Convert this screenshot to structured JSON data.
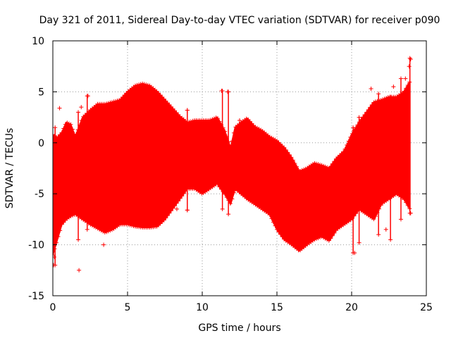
{
  "chart_data": {
    "type": "scatter",
    "title": "Day 321 of 2011, Sidereal Day-to-day VTEC variation (SDTVAR) for receiver p090",
    "xlabel": "GPS time / hours",
    "ylabel": "SDTVAR / TECUs",
    "xlim": [
      0,
      25
    ],
    "ylim": [
      -15,
      10
    ],
    "xticks": [
      0,
      5,
      10,
      15,
      20,
      25
    ],
    "yticks": [
      -15,
      -10,
      -5,
      0,
      5,
      10
    ],
    "xtick_labels": [
      "0",
      "5",
      "10",
      "15",
      "20",
      "25"
    ],
    "ytick_labels": [
      "-15",
      "-10",
      "-5",
      "0",
      "5",
      "10"
    ],
    "grid": true,
    "marker": "+",
    "color": "#ff0000",
    "envelope": {
      "x": [
        0.0,
        0.3,
        0.6,
        0.9,
        1.2,
        1.5,
        2.0,
        2.5,
        3.0,
        3.5,
        4.0,
        4.5,
        5.0,
        5.5,
        6.0,
        6.5,
        7.0,
        7.5,
        8.0,
        8.5,
        9.0,
        9.5,
        10.0,
        10.5,
        11.0,
        11.5,
        11.9,
        12.2,
        12.6,
        13.0,
        13.5,
        14.0,
        14.5,
        15.0,
        15.5,
        16.0,
        16.5,
        17.0,
        17.5,
        18.0,
        18.5,
        19.0,
        19.5,
        20.0,
        20.5,
        21.0,
        21.5,
        22.0,
        22.5,
        23.0,
        23.5,
        23.9
      ],
      "upper": [
        0.8,
        0.5,
        1.0,
        2.0,
        1.8,
        0.6,
        2.5,
        3.2,
        3.8,
        3.8,
        4.0,
        4.2,
        5.0,
        5.6,
        5.8,
        5.6,
        5.0,
        4.2,
        3.4,
        2.6,
        2.0,
        2.2,
        2.2,
        2.2,
        2.5,
        1.2,
        -0.5,
        1.5,
        2.0,
        2.4,
        1.6,
        1.2,
        0.6,
        0.2,
        -0.5,
        -1.5,
        -2.8,
        -2.5,
        -2.0,
        -2.2,
        -2.5,
        -1.5,
        -0.8,
        0.8,
        2.0,
        3.0,
        4.0,
        4.2,
        4.5,
        4.5,
        5.0,
        6.0
      ],
      "lower": [
        -11.0,
        -9.5,
        -8.0,
        -7.5,
        -7.2,
        -7.0,
        -7.5,
        -8.0,
        -8.4,
        -8.8,
        -8.5,
        -8.0,
        -8.0,
        -8.2,
        -8.3,
        -8.3,
        -8.2,
        -7.5,
        -6.5,
        -5.5,
        -4.5,
        -4.5,
        -5.0,
        -4.5,
        -4.0,
        -5.0,
        -6.0,
        -4.5,
        -5.0,
        -5.5,
        -6.0,
        -6.5,
        -7.0,
        -8.5,
        -9.5,
        -10.0,
        -10.6,
        -10.0,
        -9.5,
        -9.2,
        -9.6,
        -8.5,
        -8.0,
        -7.5,
        -6.5,
        -7.0,
        -7.5,
        -6.0,
        -5.5,
        -5.0,
        -5.5,
        -6.5
      ]
    },
    "outliers": [
      {
        "x": 0.05,
        "y": -12.0
      },
      {
        "x": 0.1,
        "y": -11.2
      },
      {
        "x": 0.45,
        "y": 3.4
      },
      {
        "x": 1.75,
        "y": -12.5
      },
      {
        "x": 1.9,
        "y": 3.5
      },
      {
        "x": 2.35,
        "y": 4.6
      },
      {
        "x": 3.4,
        "y": -10.0
      },
      {
        "x": 8.3,
        "y": -6.5
      },
      {
        "x": 9.0,
        "y": -6.6
      },
      {
        "x": 9.0,
        "y": 3.2
      },
      {
        "x": 11.3,
        "y": 5.1
      },
      {
        "x": 11.7,
        "y": 5.0
      },
      {
        "x": 12.5,
        "y": 2.2
      },
      {
        "x": 18.1,
        "y": -7.9
      },
      {
        "x": 20.2,
        "y": -10.8
      },
      {
        "x": 21.3,
        "y": 5.3
      },
      {
        "x": 22.3,
        "y": -8.5
      },
      {
        "x": 22.8,
        "y": 5.5
      },
      {
        "x": 23.6,
        "y": 6.3
      },
      {
        "x": 23.85,
        "y": 7.5
      },
      {
        "x": 23.95,
        "y": 8.2
      },
      {
        "x": 23.95,
        "y": -6.9
      }
    ],
    "spikes": [
      {
        "x": 0.15,
        "low": -12.0,
        "high": 1.5
      },
      {
        "x": 1.7,
        "low": -9.5,
        "high": 3.0
      },
      {
        "x": 2.3,
        "low": -8.5,
        "high": 4.6
      },
      {
        "x": 9.0,
        "low": -6.6,
        "high": 3.2
      },
      {
        "x": 11.35,
        "low": -6.5,
        "high": 5.1
      },
      {
        "x": 11.75,
        "low": -7.0,
        "high": 5.0
      },
      {
        "x": 20.1,
        "low": -10.8,
        "high": 1.5
      },
      {
        "x": 20.5,
        "low": -9.8,
        "high": 2.5
      },
      {
        "x": 21.8,
        "low": -9.0,
        "high": 4.8
      },
      {
        "x": 22.6,
        "low": -9.5,
        "high": 4.5
      },
      {
        "x": 23.3,
        "low": -7.5,
        "high": 6.3
      },
      {
        "x": 23.9,
        "low": -6.9,
        "high": 8.3
      }
    ]
  }
}
